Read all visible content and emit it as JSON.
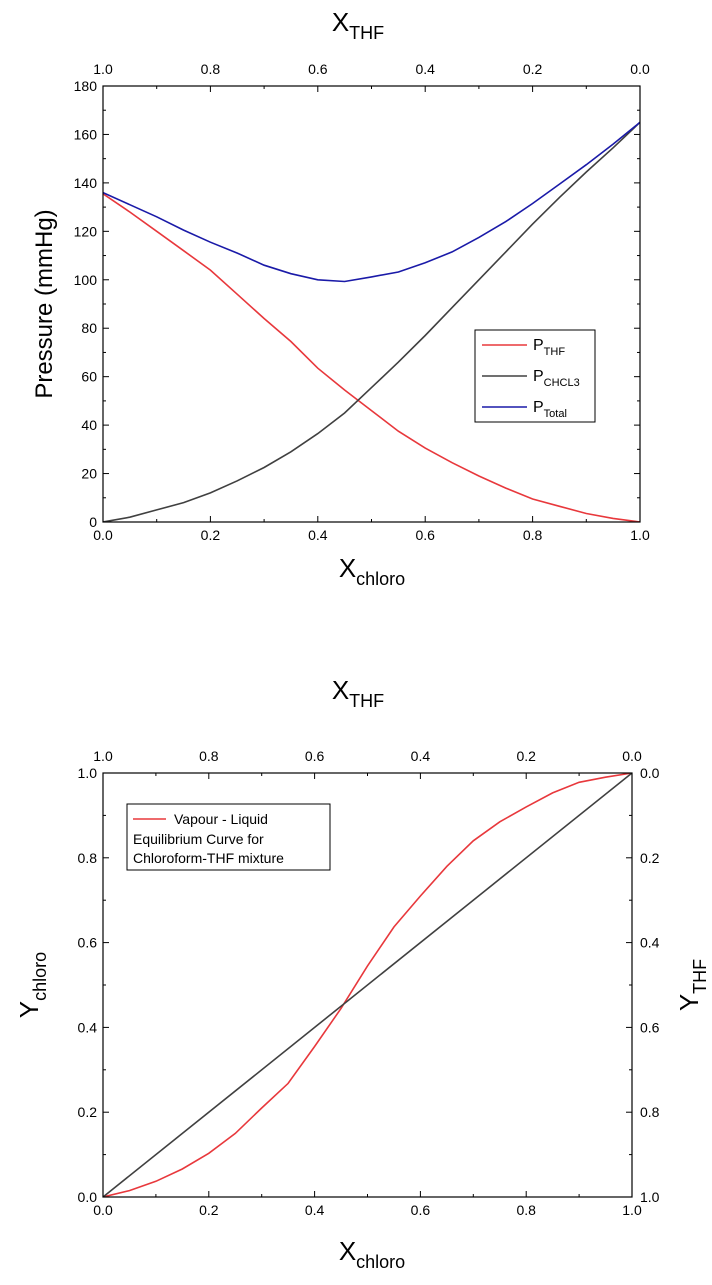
{
  "chart_data": [
    {
      "type": "line",
      "top_axis": {
        "label_main": "X",
        "label_sub": "THF",
        "tick_labels": [
          "1.0",
          "0.8",
          "0.6",
          "0.4",
          "0.2",
          "0.0"
        ]
      },
      "x_axis": {
        "label_main": "X",
        "label_sub": "chloro",
        "range": [
          0,
          1
        ],
        "tick_labels": [
          "0.0",
          "0.2",
          "0.4",
          "0.6",
          "0.8",
          "1.0"
        ]
      },
      "y_axis": {
        "label": "Pressure (mmHg)",
        "range": [
          0,
          180
        ],
        "tick_labels": [
          "0",
          "20",
          "40",
          "60",
          "80",
          "100",
          "120",
          "140",
          "160",
          "180"
        ]
      },
      "grid": false,
      "legend_position": "right",
      "series": [
        {
          "name_main": "P",
          "name_sub": "THF",
          "color": "#e8383c",
          "x": [
            0,
            0.05,
            0.1,
            0.15,
            0.2,
            0.25,
            0.3,
            0.35,
            0.4,
            0.45,
            0.5,
            0.55,
            0.6,
            0.65,
            0.7,
            0.75,
            0.8,
            0.85,
            0.9,
            0.95,
            1.0
          ],
          "y": [
            135.5,
            128,
            120,
            112,
            104,
            94,
            84,
            74.5,
            63.5,
            54.5,
            46,
            37.5,
            30.5,
            24.5,
            19,
            14,
            9.5,
            6.5,
            3.5,
            1.5,
            0
          ]
        },
        {
          "name_main": "P",
          "name_sub": "CHCL3",
          "color": "#404040",
          "x": [
            0,
            0.05,
            0.1,
            0.15,
            0.2,
            0.25,
            0.3,
            0.35,
            0.4,
            0.45,
            0.5,
            0.55,
            0.6,
            0.65,
            0.7,
            0.75,
            0.8,
            0.85,
            0.9,
            0.95,
            1.0
          ],
          "y": [
            0,
            2,
            5,
            8,
            12,
            17,
            22.5,
            29,
            36.5,
            45,
            55.5,
            66,
            77,
            88.5,
            100,
            111.5,
            123,
            134,
            144.5,
            154.5,
            165
          ]
        },
        {
          "name_main": "P",
          "name_sub": "Total",
          "color": "#1a1aa8",
          "x": [
            0,
            0.05,
            0.1,
            0.15,
            0.2,
            0.25,
            0.3,
            0.35,
            0.4,
            0.45,
            0.5,
            0.55,
            0.6,
            0.65,
            0.7,
            0.75,
            0.8,
            0.85,
            0.9,
            0.95,
            1.0
          ],
          "y": [
            136,
            131,
            126,
            120.5,
            115.5,
            111,
            106,
            102.5,
            100,
            99.3,
            101.2,
            103.2,
            107,
            111.5,
            117.5,
            124,
            131.5,
            139.5,
            147.5,
            156,
            165
          ]
        }
      ]
    },
    {
      "type": "line",
      "top_axis": {
        "label_main": "X",
        "label_sub": "THF",
        "tick_labels": [
          "1.0",
          "0.8",
          "0.6",
          "0.4",
          "0.2",
          "0.0"
        ]
      },
      "x_axis": {
        "label_main": "X",
        "label_sub": "chloro",
        "range": [
          0,
          1
        ],
        "tick_labels": [
          "0.0",
          "0.2",
          "0.4",
          "0.6",
          "0.8",
          "1.0"
        ]
      },
      "y_axis": {
        "label_main": "Y",
        "label_sub": "chloro",
        "range": [
          0,
          1
        ],
        "tick_labels": [
          "0.0",
          "0.2",
          "0.4",
          "0.6",
          "0.8",
          "1.0"
        ]
      },
      "y2_axis": {
        "label_main": "Y",
        "label_sub": "THF",
        "tick_labels": [
          "1.0",
          "0.8",
          "0.6",
          "0.4",
          "0.2",
          "0.0"
        ]
      },
      "grid": false,
      "legend_position": "top-left",
      "series": [
        {
          "legend_lines": [
            "Vapour - Liquid",
            "Equilibrium Curve for",
            "Chloroform-THF mixture"
          ],
          "color": "#e8383c",
          "x": [
            0,
            0.05,
            0.1,
            0.15,
            0.2,
            0.25,
            0.3,
            0.35,
            0.4,
            0.45,
            0.5,
            0.55,
            0.6,
            0.65,
            0.7,
            0.75,
            0.8,
            0.85,
            0.9,
            0.95,
            1.0
          ],
          "y": [
            0,
            0.015,
            0.037,
            0.066,
            0.103,
            0.15,
            0.21,
            0.268,
            0.355,
            0.445,
            0.545,
            0.637,
            0.71,
            0.78,
            0.84,
            0.885,
            0.92,
            0.953,
            0.978,
            0.99,
            1.0
          ]
        },
        {
          "color": "#404040",
          "x": [
            0,
            1
          ],
          "y": [
            0,
            1
          ]
        }
      ]
    }
  ]
}
